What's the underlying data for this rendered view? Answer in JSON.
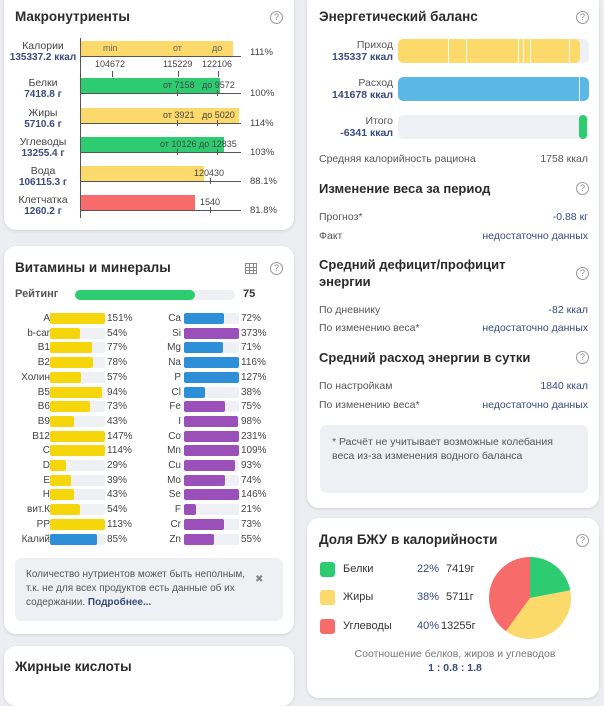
{
  "macros": {
    "title": "Макронутриенты",
    "scale_labels": [
      "min",
      "от",
      "до"
    ],
    "items": [
      {
        "name": "Калории",
        "value": "135337.2 ккал",
        "pct": "111%",
        "color": "#fcd96b",
        "fill_pct": 111,
        "min": "104672",
        "from": "115229",
        "to": "122106"
      },
      {
        "name": "Белки",
        "value": "7418.8 г",
        "pct": "100%",
        "color": "#2ecc71",
        "fill_pct": 100,
        "from": "от 7158",
        "to": "до 9572"
      },
      {
        "name": "Жиры",
        "value": "5710.6 г",
        "pct": "114%",
        "color": "#fcd96b",
        "fill_pct": 114,
        "from": "от 3921",
        "to": "до 5020"
      },
      {
        "name": "Углеводы",
        "value": "13255.4 г",
        "pct": "103%",
        "color": "#2ecc71",
        "fill_pct": 103,
        "from": "от 10126",
        "to": "до 12835"
      },
      {
        "name": "Вода",
        "value": "106115.3 г",
        "pct": "88.1%",
        "color": "#fcd96b",
        "fill_pct": 88.1,
        "norm": "120430"
      },
      {
        "name": "Клетчатка",
        "value": "1260.2 г",
        "pct": "81.8%",
        "color": "#f76b6b",
        "fill_pct": 81.8,
        "norm": "1540"
      }
    ]
  },
  "vitamins": {
    "title": "Витамины и минералы",
    "rating_label": "Рейтинг",
    "rating_value": "75",
    "rating": 75,
    "info_text": "Количество нутриентов может быть неполным, т.к. не для всех продуктов есть данные об их содержании.",
    "info_link": "Подробнее...",
    "close_glyph": "✖",
    "left": [
      {
        "name": "A",
        "pct": 151,
        "label": "151%",
        "color": "#f5d60a"
      },
      {
        "name": "b-car",
        "pct": 54,
        "label": "54%",
        "color": "#f5d60a"
      },
      {
        "name": "B1",
        "pct": 77,
        "label": "77%",
        "color": "#f5d60a"
      },
      {
        "name": "B2",
        "pct": 78,
        "label": "78%",
        "color": "#f5d60a"
      },
      {
        "name": "Холин",
        "pct": 57,
        "label": "57%",
        "color": "#f5d60a"
      },
      {
        "name": "B5",
        "pct": 94,
        "label": "94%",
        "color": "#f5d60a"
      },
      {
        "name": "B6",
        "pct": 73,
        "label": "73%",
        "color": "#f5d60a"
      },
      {
        "name": "B9",
        "pct": 43,
        "label": "43%",
        "color": "#f5d60a"
      },
      {
        "name": "B12",
        "pct": 147,
        "label": "147%",
        "color": "#f5d60a"
      },
      {
        "name": "C",
        "pct": 114,
        "label": "114%",
        "color": "#f5d60a"
      },
      {
        "name": "D",
        "pct": 29,
        "label": "29%",
        "color": "#f5d60a"
      },
      {
        "name": "E",
        "pct": 39,
        "label": "39%",
        "color": "#f5d60a"
      },
      {
        "name": "H",
        "pct": 43,
        "label": "43%",
        "color": "#f5d60a"
      },
      {
        "name": "вит.К",
        "pct": 54,
        "label": "54%",
        "color": "#f5d60a"
      },
      {
        "name": "PP",
        "pct": 113,
        "label": "113%",
        "color": "#f5d60a"
      },
      {
        "name": "Калий",
        "pct": 85,
        "label": "85%",
        "color": "#2d8fd8"
      }
    ],
    "right": [
      {
        "name": "Ca",
        "pct": 72,
        "label": "72%",
        "color": "#2d8fd8"
      },
      {
        "name": "Si",
        "pct": 373,
        "label": "373%",
        "color": "#9b4fb8"
      },
      {
        "name": "Mg",
        "pct": 71,
        "label": "71%",
        "color": "#2d8fd8"
      },
      {
        "name": "Na",
        "pct": 116,
        "label": "116%",
        "color": "#2d8fd8"
      },
      {
        "name": "P",
        "pct": 127,
        "label": "127%",
        "color": "#2d8fd8"
      },
      {
        "name": "Cl",
        "pct": 38,
        "label": "38%",
        "color": "#2d8fd8"
      },
      {
        "name": "Fe",
        "pct": 75,
        "label": "75%",
        "color": "#9b4fb8"
      },
      {
        "name": "I",
        "pct": 98,
        "label": "98%",
        "color": "#9b4fb8"
      },
      {
        "name": "Co",
        "pct": 231,
        "label": "231%",
        "color": "#9b4fb8"
      },
      {
        "name": "Mn",
        "pct": 109,
        "label": "109%",
        "color": "#9b4fb8"
      },
      {
        "name": "Cu",
        "pct": 93,
        "label": "93%",
        "color": "#9b4fb8"
      },
      {
        "name": "Mo",
        "pct": 74,
        "label": "74%",
        "color": "#9b4fb8"
      },
      {
        "name": "Se",
        "pct": 146,
        "label": "146%",
        "color": "#9b4fb8"
      },
      {
        "name": "F",
        "pct": 21,
        "label": "21%",
        "color": "#9b4fb8"
      },
      {
        "name": "Cr",
        "pct": 73,
        "label": "73%",
        "color": "#9b4fb8"
      },
      {
        "name": "Zn",
        "pct": 55,
        "label": "55%",
        "color": "#9b4fb8"
      }
    ]
  },
  "fatty_acids": {
    "title": "Жирные кислоты"
  },
  "energy": {
    "title": "Энергетический баланс",
    "income": {
      "label": "Приход",
      "value": "135337 ккал",
      "kcal": 135337,
      "color": "#fcd96b"
    },
    "expense": {
      "label": "Расход",
      "value": "141678 ккал",
      "kcal": 141678,
      "color": "#5bb8e6"
    },
    "total": {
      "label": "Итого",
      "value": "-6341 ккал",
      "kcal": -6341,
      "color": "#2ecc71"
    },
    "avg_label": "Средняя калорийность рациона",
    "avg_value": "1758 ккал"
  },
  "weight_change": {
    "title": "Изменение веса за период",
    "forecast_label": "Прогноз*",
    "forecast_value": "-0.88 кг",
    "fact_label": "Факт",
    "fact_value": "недостаточно данных"
  },
  "deficit": {
    "title": "Средний дефицит/профицит энергии",
    "diary_label": "По дневнику",
    "diary_value": "-82 ккал",
    "weight_label": "По изменению веса*",
    "weight_value": "недостаточно данных"
  },
  "expenditure": {
    "title": "Средний расход энергии в сутки",
    "settings_label": "По настройкам",
    "settings_value": "1840 ккал",
    "weight_label": "По изменению веса*",
    "weight_value": "недостаточно данных",
    "note": "* Расчёт не учитывает возможные колебания веса из-за изменения водного баланса"
  },
  "bju": {
    "title": "Доля БЖУ в калорийности",
    "items": [
      {
        "name": "Белки",
        "pct_label": "22%",
        "pct": 22,
        "grams": "7419г",
        "color": "#2ecc71"
      },
      {
        "name": "Жиры",
        "pct_label": "38%",
        "pct": 38,
        "grams": "5711г",
        "color": "#fcd96b"
      },
      {
        "name": "Углеводы",
        "pct_label": "40%",
        "pct": 40,
        "grams": "13255г",
        "color": "#f76b6b"
      }
    ],
    "ratio_label": "Соотношение белков, жиров и углеводов",
    "ratio_value": "1 : 0.8 : 1.8"
  }
}
